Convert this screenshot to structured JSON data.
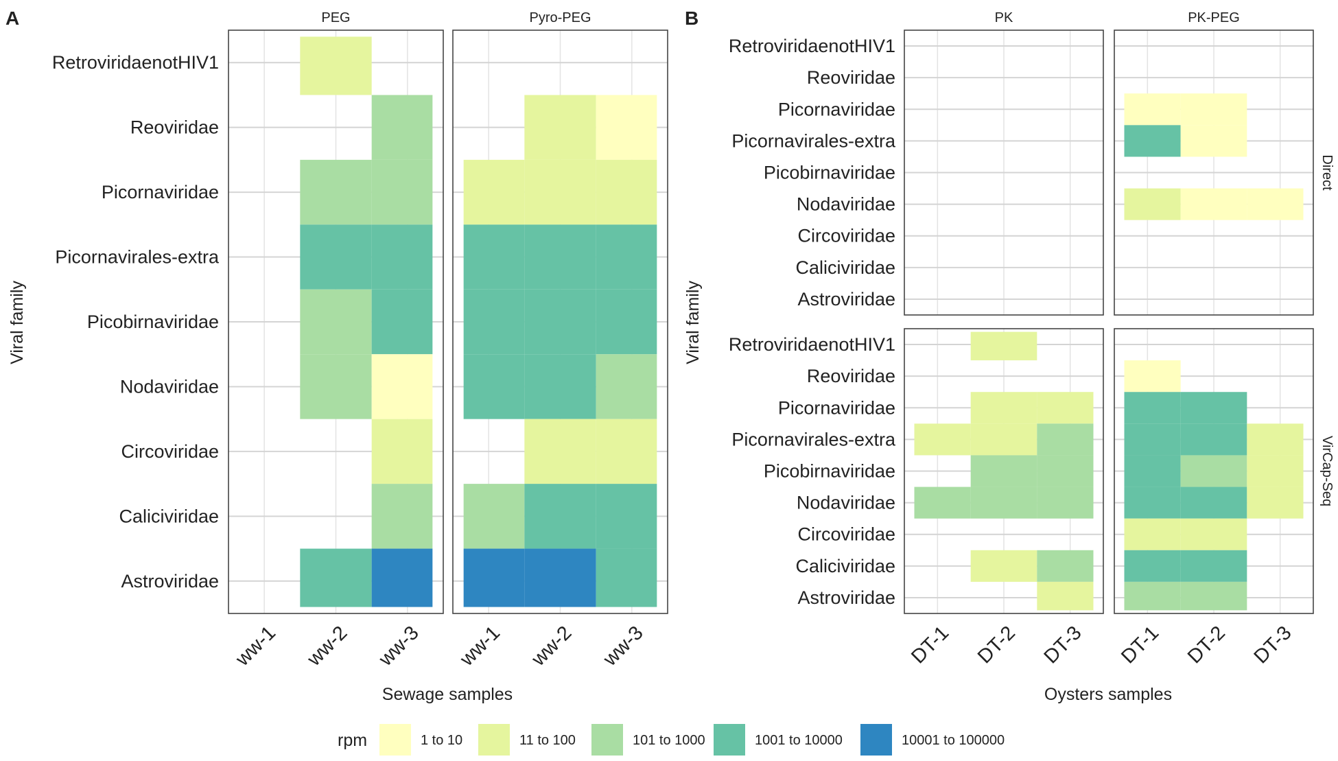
{
  "legend": {
    "title": "rpm",
    "items": [
      {
        "key": "1 to 10",
        "color": "#FFFFBF"
      },
      {
        "key": "11 to 100",
        "color": "#E5F59E"
      },
      {
        "key": "101 to 1000",
        "color": "#A9DDA3"
      },
      {
        "key": "1001 to 10000",
        "color": "#66C2A5"
      },
      {
        "key": "10001 to 100000",
        "color": "#2E86C1"
      }
    ]
  },
  "chart_data": [
    {
      "type": "heatmap",
      "panel_letter": "A",
      "xlabel": "Sewage samples",
      "ylabel": "Viral family",
      "categories": [
        "RetroviridaenotHIV1",
        "Reoviridae",
        "Picornaviridae",
        "Picornavirales-extra",
        "Picobirnaviridae",
        "Nodaviridae",
        "Circoviridae",
        "Caliciviridae",
        "Astroviridae"
      ],
      "facet_columns": [
        {
          "title": "PEG",
          "x": [
            "ww-1",
            "ww-2",
            "ww-3"
          ],
          "cells": [
            {
              "family": "RetroviridaenotHIV1",
              "sample": "ww-2",
              "rpm": "11 to 100"
            },
            {
              "family": "Reoviridae",
              "sample": "ww-3",
              "rpm": "101 to 1000"
            },
            {
              "family": "Picornaviridae",
              "sample": "ww-2",
              "rpm": "101 to 1000"
            },
            {
              "family": "Picornaviridae",
              "sample": "ww-3",
              "rpm": "101 to 1000"
            },
            {
              "family": "Picornavirales-extra",
              "sample": "ww-2",
              "rpm": "1001 to 10000"
            },
            {
              "family": "Picornavirales-extra",
              "sample": "ww-3",
              "rpm": "1001 to 10000"
            },
            {
              "family": "Picobirnaviridae",
              "sample": "ww-2",
              "rpm": "101 to 1000"
            },
            {
              "family": "Picobirnaviridae",
              "sample": "ww-3",
              "rpm": "1001 to 10000"
            },
            {
              "family": "Nodaviridae",
              "sample": "ww-2",
              "rpm": "101 to 1000"
            },
            {
              "family": "Nodaviridae",
              "sample": "ww-3",
              "rpm": "1 to 10"
            },
            {
              "family": "Circoviridae",
              "sample": "ww-3",
              "rpm": "11 to 100"
            },
            {
              "family": "Caliciviridae",
              "sample": "ww-3",
              "rpm": "101 to 1000"
            },
            {
              "family": "Astroviridae",
              "sample": "ww-2",
              "rpm": "1001 to 10000"
            },
            {
              "family": "Astroviridae",
              "sample": "ww-3",
              "rpm": "10001 to 100000"
            }
          ]
        },
        {
          "title": "Pyro-PEG",
          "x": [
            "ww-1",
            "ww-2",
            "ww-3"
          ],
          "cells": [
            {
              "family": "Reoviridae",
              "sample": "ww-2",
              "rpm": "11 to 100"
            },
            {
              "family": "Reoviridae",
              "sample": "ww-3",
              "rpm": "1 to 10"
            },
            {
              "family": "Picornaviridae",
              "sample": "ww-1",
              "rpm": "11 to 100"
            },
            {
              "family": "Picornaviridae",
              "sample": "ww-2",
              "rpm": "11 to 100"
            },
            {
              "family": "Picornaviridae",
              "sample": "ww-3",
              "rpm": "11 to 100"
            },
            {
              "family": "Picornavirales-extra",
              "sample": "ww-1",
              "rpm": "1001 to 10000"
            },
            {
              "family": "Picornavirales-extra",
              "sample": "ww-2",
              "rpm": "1001 to 10000"
            },
            {
              "family": "Picornavirales-extra",
              "sample": "ww-3",
              "rpm": "1001 to 10000"
            },
            {
              "family": "Picobirnaviridae",
              "sample": "ww-1",
              "rpm": "1001 to 10000"
            },
            {
              "family": "Picobirnaviridae",
              "sample": "ww-2",
              "rpm": "1001 to 10000"
            },
            {
              "family": "Picobirnaviridae",
              "sample": "ww-3",
              "rpm": "1001 to 10000"
            },
            {
              "family": "Nodaviridae",
              "sample": "ww-1",
              "rpm": "1001 to 10000"
            },
            {
              "family": "Nodaviridae",
              "sample": "ww-2",
              "rpm": "1001 to 10000"
            },
            {
              "family": "Nodaviridae",
              "sample": "ww-3",
              "rpm": "101 to 1000"
            },
            {
              "family": "Circoviridae",
              "sample": "ww-2",
              "rpm": "11 to 100"
            },
            {
              "family": "Circoviridae",
              "sample": "ww-3",
              "rpm": "11 to 100"
            },
            {
              "family": "Caliciviridae",
              "sample": "ww-1",
              "rpm": "101 to 1000"
            },
            {
              "family": "Caliciviridae",
              "sample": "ww-2",
              "rpm": "1001 to 10000"
            },
            {
              "family": "Caliciviridae",
              "sample": "ww-3",
              "rpm": "1001 to 10000"
            },
            {
              "family": "Astroviridae",
              "sample": "ww-1",
              "rpm": "10001 to 100000"
            },
            {
              "family": "Astroviridae",
              "sample": "ww-2",
              "rpm": "10001 to 100000"
            },
            {
              "family": "Astroviridae",
              "sample": "ww-3",
              "rpm": "1001 to 10000"
            }
          ]
        }
      ]
    },
    {
      "type": "heatmap",
      "panel_letter": "B",
      "xlabel": "Oysters samples",
      "ylabel": "Viral family",
      "categories": [
        "RetroviridaenotHIV1",
        "Reoviridae",
        "Picornaviridae",
        "Picornavirales-extra",
        "Picobirnaviridae",
        "Nodaviridae",
        "Circoviridae",
        "Caliciviridae",
        "Astroviridae"
      ],
      "facet_columns": [
        {
          "title": "PK",
          "x": [
            "DT-1",
            "DT-2",
            "DT-3"
          ]
        },
        {
          "title": "PK-PEG",
          "x": [
            "DT-1",
            "DT-2",
            "DT-3"
          ]
        }
      ],
      "facet_rows": [
        {
          "title": "Direct",
          "cells": {
            "PK": [],
            "PK-PEG": [
              {
                "family": "Picornaviridae",
                "sample": "DT-1",
                "rpm": "1 to 10"
              },
              {
                "family": "Picornaviridae",
                "sample": "DT-2",
                "rpm": "1 to 10"
              },
              {
                "family": "Picornavirales-extra",
                "sample": "DT-1",
                "rpm": "1001 to 10000"
              },
              {
                "family": "Picornavirales-extra",
                "sample": "DT-2",
                "rpm": "1 to 10"
              },
              {
                "family": "Nodaviridae",
                "sample": "DT-1",
                "rpm": "11 to 100"
              },
              {
                "family": "Nodaviridae",
                "sample": "DT-2",
                "rpm": "1 to 10"
              },
              {
                "family": "Nodaviridae",
                "sample": "DT-3",
                "rpm": "1 to 10"
              }
            ]
          }
        },
        {
          "title": "VirCap-Seq",
          "cells": {
            "PK": [
              {
                "family": "RetroviridaenotHIV1",
                "sample": "DT-2",
                "rpm": "11 to 100"
              },
              {
                "family": "Picornaviridae",
                "sample": "DT-2",
                "rpm": "11 to 100"
              },
              {
                "family": "Picornaviridae",
                "sample": "DT-3",
                "rpm": "11 to 100"
              },
              {
                "family": "Picornavirales-extra",
                "sample": "DT-1",
                "rpm": "11 to 100"
              },
              {
                "family": "Picornavirales-extra",
                "sample": "DT-2",
                "rpm": "11 to 100"
              },
              {
                "family": "Picornavirales-extra",
                "sample": "DT-3",
                "rpm": "101 to 1000"
              },
              {
                "family": "Picobirnaviridae",
                "sample": "DT-2",
                "rpm": "101 to 1000"
              },
              {
                "family": "Picobirnaviridae",
                "sample": "DT-3",
                "rpm": "101 to 1000"
              },
              {
                "family": "Nodaviridae",
                "sample": "DT-1",
                "rpm": "101 to 1000"
              },
              {
                "family": "Nodaviridae",
                "sample": "DT-2",
                "rpm": "101 to 1000"
              },
              {
                "family": "Nodaviridae",
                "sample": "DT-3",
                "rpm": "101 to 1000"
              },
              {
                "family": "Caliciviridae",
                "sample": "DT-2",
                "rpm": "11 to 100"
              },
              {
                "family": "Caliciviridae",
                "sample": "DT-3",
                "rpm": "101 to 1000"
              },
              {
                "family": "Astroviridae",
                "sample": "DT-3",
                "rpm": "11 to 100"
              }
            ],
            "PK-PEG": [
              {
                "family": "Reoviridae",
                "sample": "DT-1",
                "rpm": "1 to 10"
              },
              {
                "family": "Picornaviridae",
                "sample": "DT-1",
                "rpm": "1001 to 10000"
              },
              {
                "family": "Picornaviridae",
                "sample": "DT-2",
                "rpm": "1001 to 10000"
              },
              {
                "family": "Picornavirales-extra",
                "sample": "DT-1",
                "rpm": "1001 to 10000"
              },
              {
                "family": "Picornavirales-extra",
                "sample": "DT-2",
                "rpm": "1001 to 10000"
              },
              {
                "family": "Picornavirales-extra",
                "sample": "DT-3",
                "rpm": "11 to 100"
              },
              {
                "family": "Picobirnaviridae",
                "sample": "DT-1",
                "rpm": "1001 to 10000"
              },
              {
                "family": "Picobirnaviridae",
                "sample": "DT-2",
                "rpm": "101 to 1000"
              },
              {
                "family": "Picobirnaviridae",
                "sample": "DT-3",
                "rpm": "11 to 100"
              },
              {
                "family": "Nodaviridae",
                "sample": "DT-1",
                "rpm": "1001 to 10000"
              },
              {
                "family": "Nodaviridae",
                "sample": "DT-2",
                "rpm": "1001 to 10000"
              },
              {
                "family": "Nodaviridae",
                "sample": "DT-3",
                "rpm": "11 to 100"
              },
              {
                "family": "Circoviridae",
                "sample": "DT-1",
                "rpm": "11 to 100"
              },
              {
                "family": "Circoviridae",
                "sample": "DT-2",
                "rpm": "11 to 100"
              },
              {
                "family": "Caliciviridae",
                "sample": "DT-1",
                "rpm": "1001 to 10000"
              },
              {
                "family": "Caliciviridae",
                "sample": "DT-2",
                "rpm": "1001 to 10000"
              },
              {
                "family": "Astroviridae",
                "sample": "DT-1",
                "rpm": "101 to 1000"
              },
              {
                "family": "Astroviridae",
                "sample": "DT-2",
                "rpm": "101 to 1000"
              }
            ]
          }
        }
      ]
    }
  ]
}
